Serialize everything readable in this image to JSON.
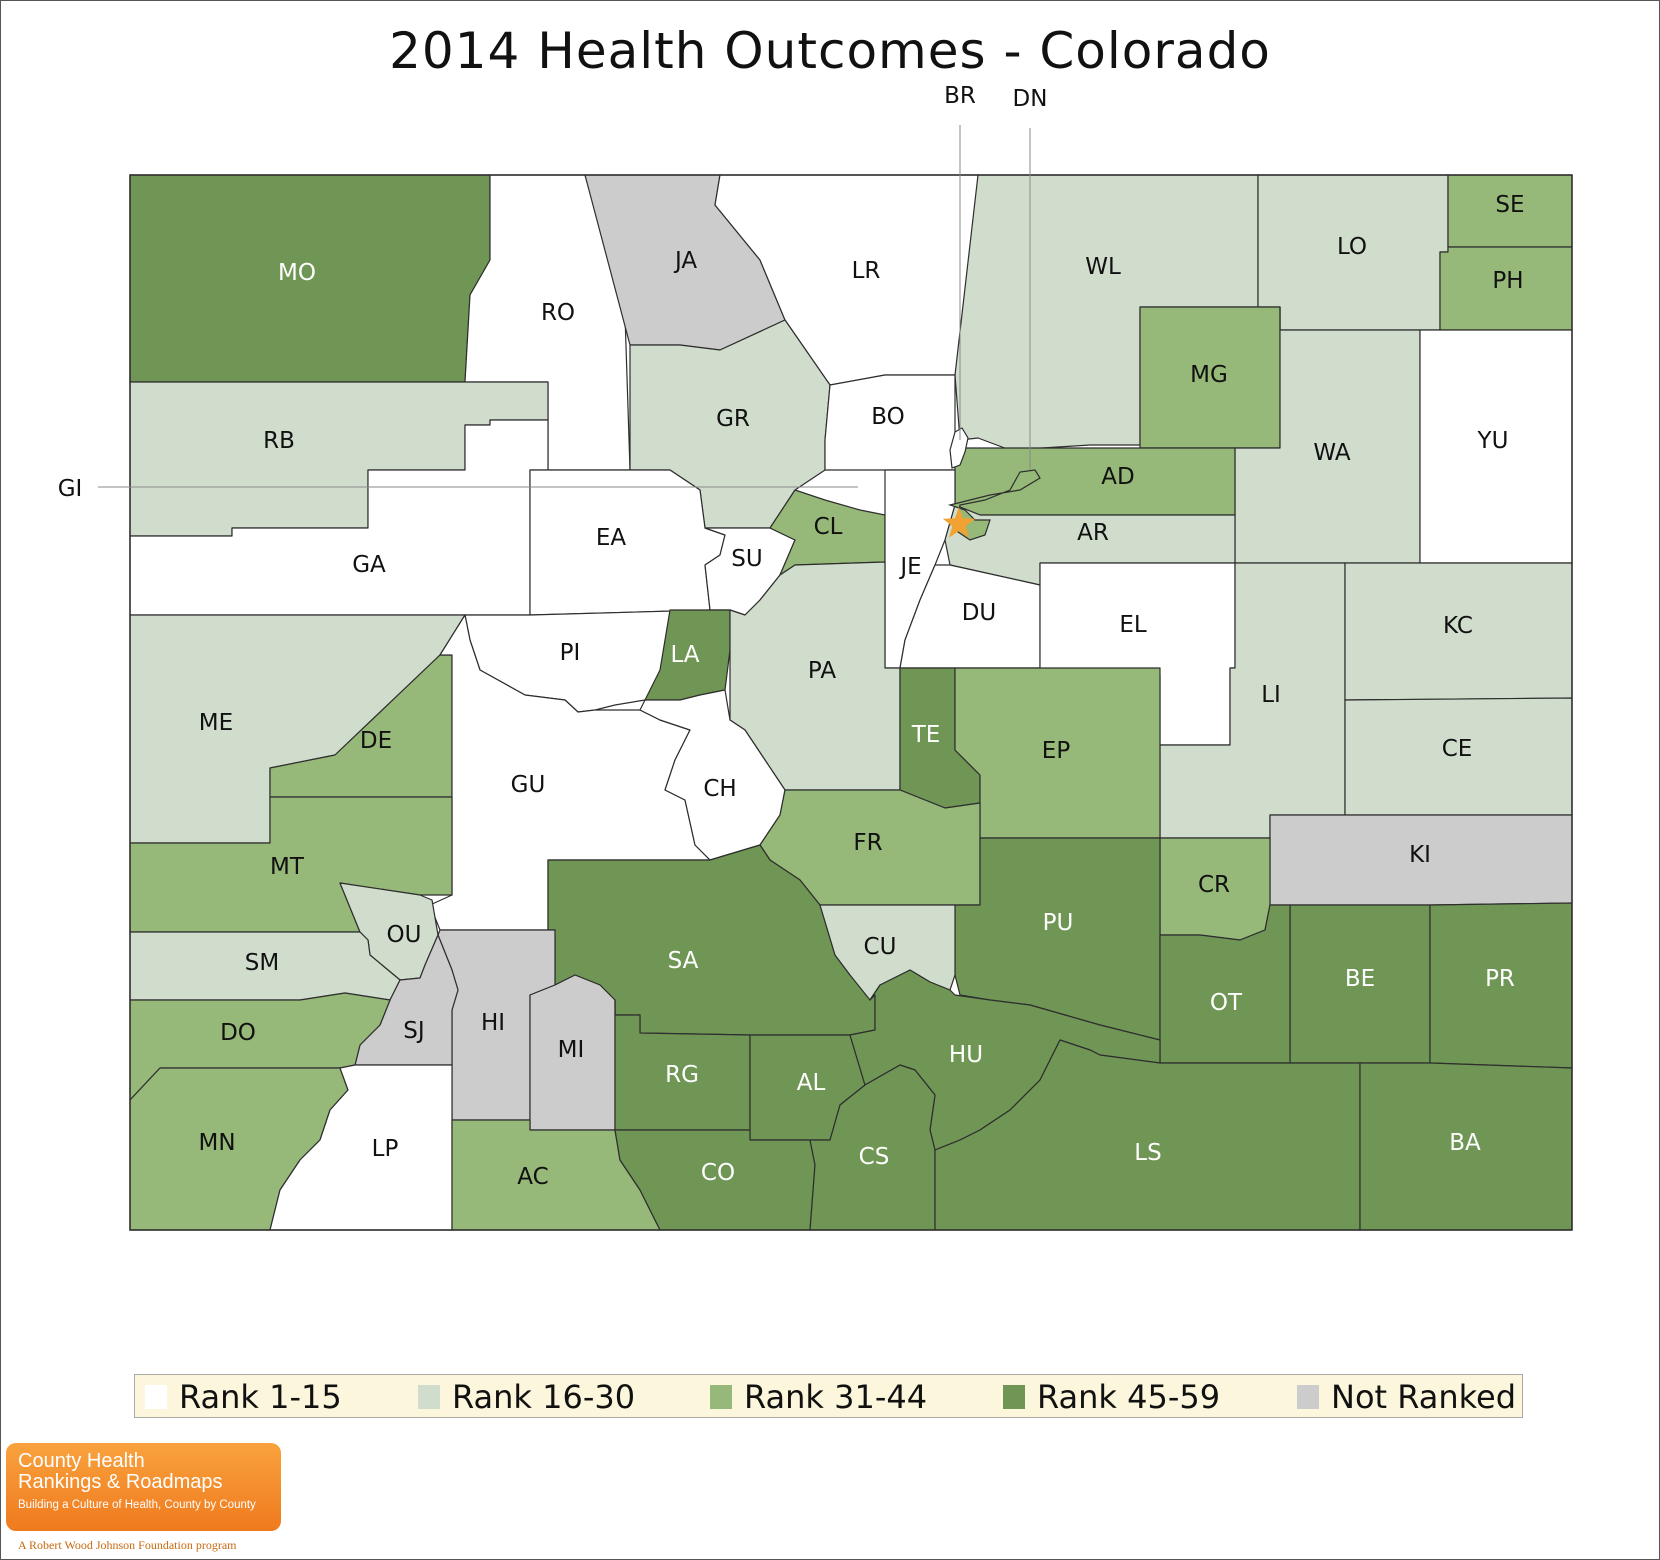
{
  "title": "2014 Health Outcomes - Colorado",
  "colors": {
    "rank_1_15": "#ffffff",
    "rank_16_30": "#d0ddcc",
    "rank_31_44": "#96b878",
    "rank_45_59": "#6f9654",
    "not_ranked": "#cccccc",
    "border": "#2e2e2e",
    "star": "#f2a232"
  },
  "counties": [
    {
      "abbr": "MO",
      "rank_class": "rank_45_59"
    },
    {
      "abbr": "RO",
      "rank_class": "rank_1_15"
    },
    {
      "abbr": "JA",
      "rank_class": "not_ranked"
    },
    {
      "abbr": "LR",
      "rank_class": "rank_1_15"
    },
    {
      "abbr": "WL",
      "rank_class": "rank_16_30"
    },
    {
      "abbr": "LO",
      "rank_class": "rank_16_30"
    },
    {
      "abbr": "SE",
      "rank_class": "rank_31_44"
    },
    {
      "abbr": "PH",
      "rank_class": "rank_31_44"
    },
    {
      "abbr": "RB",
      "rank_class": "rank_16_30"
    },
    {
      "abbr": "GR",
      "rank_class": "rank_16_30"
    },
    {
      "abbr": "BO",
      "rank_class": "rank_1_15"
    },
    {
      "abbr": "MG",
      "rank_class": "rank_31_44"
    },
    {
      "abbr": "WA",
      "rank_class": "rank_16_30"
    },
    {
      "abbr": "YU",
      "rank_class": "rank_1_15"
    },
    {
      "abbr": "AD",
      "rank_class": "rank_31_44"
    },
    {
      "abbr": "GA",
      "rank_class": "rank_1_15"
    },
    {
      "abbr": "EA",
      "rank_class": "rank_1_15"
    },
    {
      "abbr": "SU",
      "rank_class": "rank_1_15"
    },
    {
      "abbr": "CL",
      "rank_class": "rank_31_44"
    },
    {
      "abbr": "JE",
      "rank_class": "rank_1_15"
    },
    {
      "abbr": "AR",
      "rank_class": "rank_16_30"
    },
    {
      "abbr": "DU",
      "rank_class": "rank_1_15"
    },
    {
      "abbr": "EL",
      "rank_class": "rank_1_15"
    },
    {
      "abbr": "LI",
      "rank_class": "rank_16_30"
    },
    {
      "abbr": "KC",
      "rank_class": "rank_16_30"
    },
    {
      "abbr": "ME",
      "rank_class": "rank_16_30"
    },
    {
      "abbr": "PI",
      "rank_class": "rank_1_15"
    },
    {
      "abbr": "LA",
      "rank_class": "rank_45_59"
    },
    {
      "abbr": "PA",
      "rank_class": "rank_16_30"
    },
    {
      "abbr": "DE",
      "rank_class": "rank_31_44"
    },
    {
      "abbr": "TE",
      "rank_class": "rank_45_59"
    },
    {
      "abbr": "EP",
      "rank_class": "rank_31_44"
    },
    {
      "abbr": "CE",
      "rank_class": "rank_16_30"
    },
    {
      "abbr": "GU",
      "rank_class": "rank_1_15"
    },
    {
      "abbr": "CH",
      "rank_class": "rank_1_15"
    },
    {
      "abbr": "MT",
      "rank_class": "rank_31_44"
    },
    {
      "abbr": "FR",
      "rank_class": "rank_31_44"
    },
    {
      "abbr": "KI",
      "rank_class": "not_ranked"
    },
    {
      "abbr": "CR",
      "rank_class": "rank_31_44"
    },
    {
      "abbr": "PU",
      "rank_class": "rank_45_59"
    },
    {
      "abbr": "OU",
      "rank_class": "rank_16_30"
    },
    {
      "abbr": "SM",
      "rank_class": "rank_16_30"
    },
    {
      "abbr": "SA",
      "rank_class": "rank_45_59"
    },
    {
      "abbr": "CU",
      "rank_class": "rank_16_30"
    },
    {
      "abbr": "BE",
      "rank_class": "rank_45_59"
    },
    {
      "abbr": "PR",
      "rank_class": "rank_45_59"
    },
    {
      "abbr": "OT",
      "rank_class": "rank_45_59"
    },
    {
      "abbr": "HI",
      "rank_class": "not_ranked"
    },
    {
      "abbr": "SJ",
      "rank_class": "not_ranked"
    },
    {
      "abbr": "DO",
      "rank_class": "rank_31_44"
    },
    {
      "abbr": "MI",
      "rank_class": "not_ranked"
    },
    {
      "abbr": "RG",
      "rank_class": "rank_45_59"
    },
    {
      "abbr": "AL",
      "rank_class": "rank_45_59"
    },
    {
      "abbr": "HU",
      "rank_class": "rank_45_59"
    },
    {
      "abbr": "MN",
      "rank_class": "rank_31_44"
    },
    {
      "abbr": "LP",
      "rank_class": "rank_1_15"
    },
    {
      "abbr": "AC",
      "rank_class": "rank_31_44"
    },
    {
      "abbr": "CO",
      "rank_class": "rank_45_59"
    },
    {
      "abbr": "CS",
      "rank_class": "rank_45_59"
    },
    {
      "abbr": "LS",
      "rank_class": "rank_45_59"
    },
    {
      "abbr": "BA",
      "rank_class": "rank_45_59"
    }
  ],
  "callouts": [
    {
      "abbr": "BR"
    },
    {
      "abbr": "DN"
    },
    {
      "abbr": "GI"
    }
  ],
  "legend": [
    {
      "label": "Rank 1-15",
      "color": "#ffffff"
    },
    {
      "label": "Rank 16-30",
      "color": "#d0ddcc"
    },
    {
      "label": "Rank 31-44",
      "color": "#96b878"
    },
    {
      "label": "Rank 45-59",
      "color": "#6f9654"
    },
    {
      "label": "Not Ranked",
      "color": "#cccccc"
    }
  ],
  "logo": {
    "line1": "County Health",
    "line2": "Rankings & Roadmaps",
    "tagline": "Building a Culture of Health, County by County",
    "footer": "A Robert Wood Johnson Foundation program"
  }
}
